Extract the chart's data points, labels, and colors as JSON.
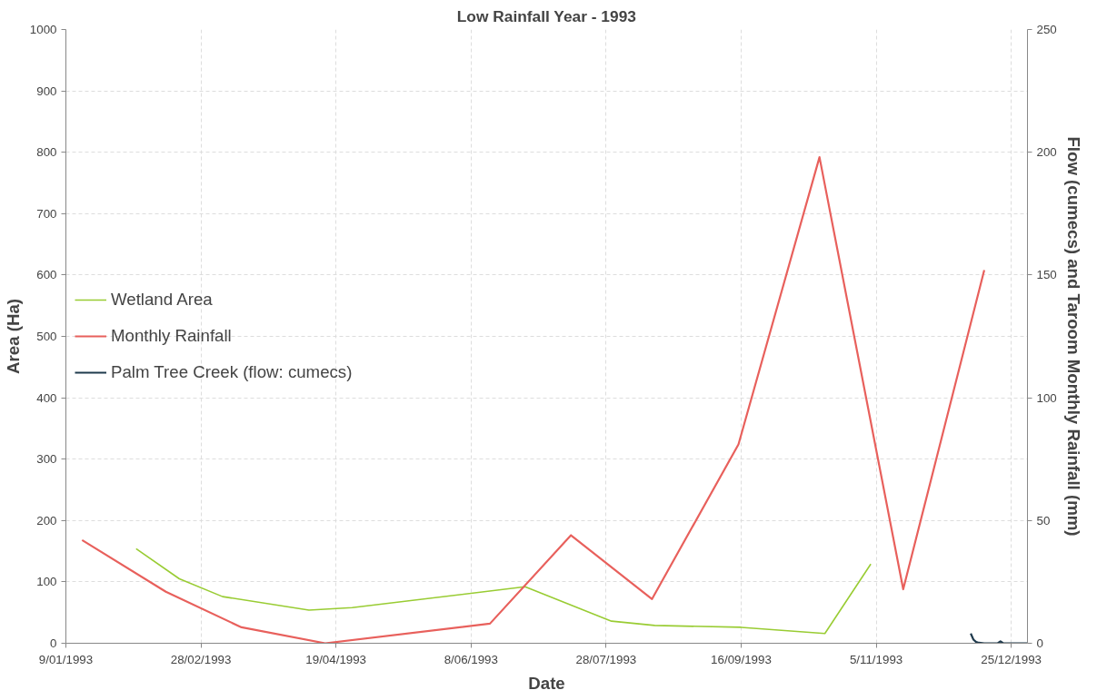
{
  "chart_data": {
    "type": "line",
    "title": "Low Rainfall Year - 1993",
    "xlabel": "Date",
    "ylabel": "Area (Ha)",
    "y2label": "Flow (cumecs) and Taroom Monthly Rainfall (mm)",
    "xlim": [
      "1993-01-09",
      "1993-12-31"
    ],
    "xticks": [
      {
        "value": "1993-01-09",
        "label": "9/01/1993"
      },
      {
        "value": "1993-02-28",
        "label": "28/02/1993"
      },
      {
        "value": "1993-04-19",
        "label": "19/04/1993"
      },
      {
        "value": "1993-06-08",
        "label": "8/06/1993"
      },
      {
        "value": "1993-07-28",
        "label": "28/07/1993"
      },
      {
        "value": "1993-09-16",
        "label": "16/09/1993"
      },
      {
        "value": "1993-11-05",
        "label": "5/11/1993"
      },
      {
        "value": "1993-12-25",
        "label": "25/12/1993"
      }
    ],
    "ylim": [
      0,
      1000
    ],
    "yticks": [
      0,
      100,
      200,
      300,
      400,
      500,
      600,
      700,
      800,
      900,
      1000
    ],
    "y2lim": [
      0,
      250
    ],
    "y2ticks": [
      0,
      50,
      100,
      150,
      200,
      250
    ],
    "grid": true,
    "legend": "left",
    "series": [
      {
        "name": "Wetland Area",
        "color": "#99cc33",
        "x": [
          "1993-02-04",
          "1993-02-20",
          "1993-03-08",
          "1993-04-09",
          "1993-04-25",
          "1993-06-28",
          "1993-07-30",
          "1993-08-15",
          "1993-09-16",
          "1993-10-17",
          "1993-11-03"
        ],
        "values": [
          154,
          105,
          76,
          54,
          58,
          92,
          36,
          29,
          26,
          16,
          129
        ]
      },
      {
        "name": "Monthly Rainfall",
        "color": "#e8605c",
        "axis": "y2",
        "x": [
          "1993-01-15",
          "1993-02-15",
          "1993-03-15",
          "1993-04-15",
          "1993-06-15",
          "1993-07-15",
          "1993-08-14",
          "1993-09-15",
          "1993-10-15",
          "1993-11-15",
          "1993-12-15"
        ],
        "values": [
          42,
          21,
          6.5,
          0,
          8,
          44,
          18,
          81,
          198,
          22,
          152
        ]
      },
      {
        "name": "Palm Tree Creek (flow: cumecs)",
        "color": "#1f3a4d",
        "axis": "y2",
        "x": [
          "1993-12-10",
          "1993-12-11",
          "1993-12-12",
          "1993-12-13",
          "1993-12-15",
          "1993-12-20",
          "1993-12-21",
          "1993-12-22",
          "1993-12-31"
        ],
        "values": [
          4,
          1.5,
          0.5,
          0.2,
          0,
          0,
          0.8,
          0,
          0
        ]
      }
    ]
  }
}
